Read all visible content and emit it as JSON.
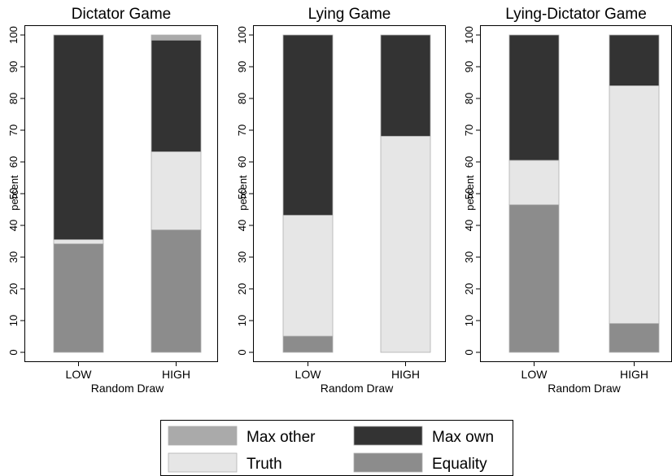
{
  "chart_data": [
    {
      "type": "bar",
      "stacked": true,
      "title": "Dictator Game",
      "xlabel": "Random Draw",
      "ylabel": "percent",
      "ylim": [
        0,
        100
      ],
      "yticks": [
        0,
        10,
        20,
        30,
        40,
        50,
        60,
        70,
        80,
        90,
        100
      ],
      "categories": [
        "LOW",
        "HIGH"
      ],
      "series": [
        {
          "name": "Equality",
          "values": [
            34.2,
            38.6
          ]
        },
        {
          "name": "Truth",
          "values": [
            1.3,
            24.6
          ]
        },
        {
          "name": "Max own",
          "values": [
            64.5,
            35.2
          ]
        },
        {
          "name": "Max other",
          "values": [
            0,
            1.6
          ]
        }
      ]
    },
    {
      "type": "bar",
      "stacked": true,
      "title": "Lying Game",
      "xlabel": "Random Draw",
      "ylabel": "percent",
      "ylim": [
        0,
        100
      ],
      "yticks": [
        0,
        10,
        20,
        30,
        40,
        50,
        60,
        70,
        80,
        90,
        100
      ],
      "categories": [
        "LOW",
        "HIGH"
      ],
      "series": [
        {
          "name": "Equality",
          "values": [
            5.1,
            0
          ]
        },
        {
          "name": "Truth",
          "values": [
            38.1,
            68.1
          ]
        },
        {
          "name": "Max own",
          "values": [
            56.8,
            31.9
          ]
        },
        {
          "name": "Max other",
          "values": [
            0,
            0
          ]
        }
      ]
    },
    {
      "type": "bar",
      "stacked": true,
      "title": "Lying-Dictator Game",
      "xlabel": "Random Draw",
      "ylabel": "percent",
      "ylim": [
        0,
        100
      ],
      "yticks": [
        0,
        10,
        20,
        30,
        40,
        50,
        60,
        70,
        80,
        90,
        100
      ],
      "categories": [
        "LOW",
        "HIGH"
      ],
      "series": [
        {
          "name": "Equality",
          "values": [
            46.5,
            9.1
          ]
        },
        {
          "name": "Truth",
          "values": [
            14.0,
            74.9
          ]
        },
        {
          "name": "Max own",
          "values": [
            39.5,
            16.0
          ]
        },
        {
          "name": "Max other",
          "values": [
            0,
            0
          ]
        }
      ]
    }
  ],
  "legend": {
    "placement": "bottom",
    "items": [
      {
        "name": "Max other",
        "color": "#aaaaaa"
      },
      {
        "name": "Max own",
        "color": "#333333"
      },
      {
        "name": "Truth",
        "color": "#e6e6e6"
      },
      {
        "name": "Equality",
        "color": "#8c8c8c"
      }
    ]
  },
  "colors": {
    "Equality": "#8c8c8c",
    "Truth": "#e6e6e6",
    "Max own": "#333333",
    "Max other": "#aaaaaa",
    "axis": "#000000",
    "bar_edge": "#b0b0b0"
  }
}
